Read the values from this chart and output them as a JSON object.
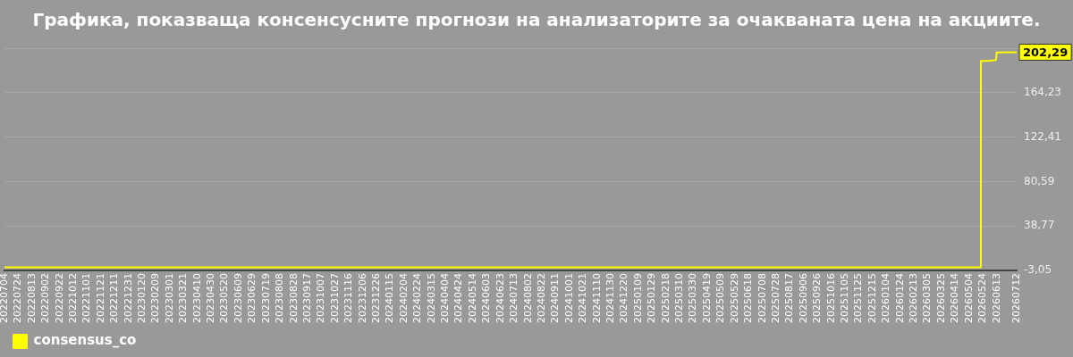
{
  "chart_data": {
    "type": "line",
    "title": "Графика, показваща консенсусните прогнози на анализаторите за очакваната цена на акциите.",
    "x": [
      "2022-07-04",
      "2026-05-20",
      "2026-05-21",
      "2026-06-01",
      "2026-06-12",
      "2026-06-13",
      "2026-07-12"
    ],
    "series": [
      {
        "name": "consensus_co",
        "color": "#ffff00",
        "values": [
          0,
          0,
          194,
          194,
          195,
          202,
          202.29
        ],
        "value_labels": [
          null,
          null,
          null,
          null,
          null,
          null,
          "202,29"
        ]
      }
    ],
    "xlim": [
      "2022-07-04",
      "2026-07-12"
    ],
    "xticks": [
      {
        "value": "2022-07-04",
        "label": "20220704"
      },
      {
        "value": "2022-07-24",
        "label": "20220724"
      },
      {
        "value": "2022-08-13",
        "label": "20220813"
      },
      {
        "value": "2022-09-02",
        "label": "20220902"
      },
      {
        "value": "2022-09-22",
        "label": "20220922"
      },
      {
        "value": "2022-10-12",
        "label": "20221012"
      },
      {
        "value": "2022-11-01",
        "label": "20221101"
      },
      {
        "value": "2022-11-21",
        "label": "20221121"
      },
      {
        "value": "2022-12-11",
        "label": "20221211"
      },
      {
        "value": "2022-12-31",
        "label": "20221231"
      },
      {
        "value": "2023-01-20",
        "label": "20230120"
      },
      {
        "value": "2023-02-09",
        "label": "20230209"
      },
      {
        "value": "2023-03-01",
        "label": "20230301"
      },
      {
        "value": "2023-03-21",
        "label": "20230321"
      },
      {
        "value": "2023-04-10",
        "label": "20230410"
      },
      {
        "value": "2023-04-30",
        "label": "20230430"
      },
      {
        "value": "2023-05-20",
        "label": "20230520"
      },
      {
        "value": "2023-06-09",
        "label": "20230609"
      },
      {
        "value": "2023-06-29",
        "label": "20230629"
      },
      {
        "value": "2023-07-19",
        "label": "20230719"
      },
      {
        "value": "2023-08-08",
        "label": "20230808"
      },
      {
        "value": "2023-08-28",
        "label": "20230828"
      },
      {
        "value": "2023-09-17",
        "label": "20230917"
      },
      {
        "value": "2023-10-07",
        "label": "20231007"
      },
      {
        "value": "2023-10-27",
        "label": "20231027"
      },
      {
        "value": "2023-11-16",
        "label": "20231116"
      },
      {
        "value": "2023-12-06",
        "label": "20231206"
      },
      {
        "value": "2023-12-26",
        "label": "20231226"
      },
      {
        "value": "2024-01-15",
        "label": "20240115"
      },
      {
        "value": "2024-02-04",
        "label": "20240204"
      },
      {
        "value": "2024-02-24",
        "label": "20240224"
      },
      {
        "value": "2024-03-15",
        "label": "20240315"
      },
      {
        "value": "2024-04-04",
        "label": "20240404"
      },
      {
        "value": "2024-04-24",
        "label": "20240424"
      },
      {
        "value": "2024-05-14",
        "label": "20240514"
      },
      {
        "value": "2024-06-03",
        "label": "20240603"
      },
      {
        "value": "2024-06-23",
        "label": "20240623"
      },
      {
        "value": "2024-07-13",
        "label": "20240713"
      },
      {
        "value": "2024-08-02",
        "label": "20240802"
      },
      {
        "value": "2024-08-22",
        "label": "20240822"
      },
      {
        "value": "2024-09-11",
        "label": "20240911"
      },
      {
        "value": "2024-10-01",
        "label": "20241001"
      },
      {
        "value": "2024-10-21",
        "label": "20241021"
      },
      {
        "value": "2024-11-10",
        "label": "20241110"
      },
      {
        "value": "2024-11-30",
        "label": "20241130"
      },
      {
        "value": "2024-12-20",
        "label": "20241220"
      },
      {
        "value": "2025-01-09",
        "label": "20250109"
      },
      {
        "value": "2025-01-29",
        "label": "20250129"
      },
      {
        "value": "2025-02-18",
        "label": "20250218"
      },
      {
        "value": "2025-03-10",
        "label": "20250310"
      },
      {
        "value": "2025-03-30",
        "label": "20250330"
      },
      {
        "value": "2025-04-19",
        "label": "20250419"
      },
      {
        "value": "2025-05-09",
        "label": "20250509"
      },
      {
        "value": "2025-05-29",
        "label": "20250529"
      },
      {
        "value": "2025-06-18",
        "label": "20250618"
      },
      {
        "value": "2025-07-08",
        "label": "20250708"
      },
      {
        "value": "2025-07-28",
        "label": "20250728"
      },
      {
        "value": "2025-08-17",
        "label": "20250817"
      },
      {
        "value": "2025-09-06",
        "label": "20250906"
      },
      {
        "value": "2025-09-26",
        "label": "20250926"
      },
      {
        "value": "2025-10-16",
        "label": "20251016"
      },
      {
        "value": "2025-11-05",
        "label": "20251105"
      },
      {
        "value": "2025-11-25",
        "label": "20251125"
      },
      {
        "value": "2025-12-15",
        "label": "20251215"
      },
      {
        "value": "2026-01-04",
        "label": "20260104"
      },
      {
        "value": "2026-01-24",
        "label": "20260124"
      },
      {
        "value": "2026-02-13",
        "label": "20260213"
      },
      {
        "value": "2026-03-05",
        "label": "20260305"
      },
      {
        "value": "2026-03-25",
        "label": "20260325"
      },
      {
        "value": "2026-04-14",
        "label": "20260414"
      },
      {
        "value": "2026-05-04",
        "label": "20260504"
      },
      {
        "value": "2026-05-24",
        "label": "20260524"
      },
      {
        "value": "2026-06-13",
        "label": "20260613"
      },
      {
        "value": "2026-07-12",
        "label": "20260712"
      }
    ],
    "ylim": [
      -3.05,
      206.05
    ],
    "yticks": [
      {
        "value": -3.05,
        "label": "-3,05"
      },
      {
        "value": 38.77,
        "label": "38,77"
      },
      {
        "value": 80.59,
        "label": "80,59"
      },
      {
        "value": 122.41,
        "label": "122,41"
      },
      {
        "value": 164.23,
        "label": "164,23"
      },
      {
        "value": 206.05,
        "label": null
      }
    ],
    "grid": "y",
    "legend": "bottom left",
    "marker": "none",
    "line_style": "solid"
  }
}
